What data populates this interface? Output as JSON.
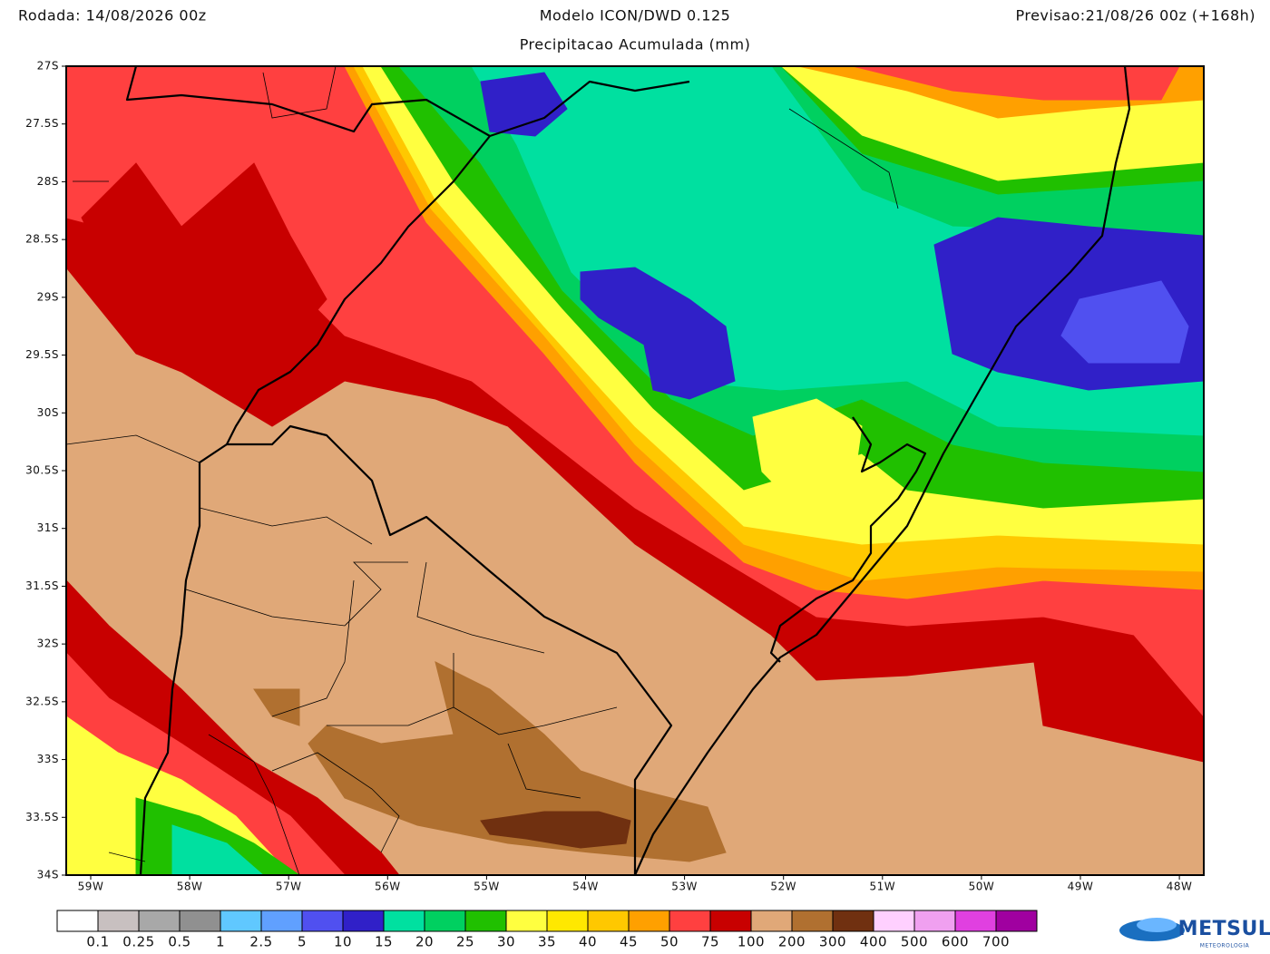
{
  "header": {
    "run": "Rodada: 14/08/2026 00z",
    "model": "Modelo ICON/DWD 0.125",
    "forecast": "Previsao:21/08/26 00z (+168h)",
    "product": "Precipitacao Acumulada (mm)"
  },
  "map": {
    "lat_labels": [
      "27S",
      "27.5S",
      "28S",
      "28.5S",
      "29S",
      "29.5S",
      "30S",
      "30.5S",
      "31S",
      "31.5S",
      "32S",
      "32.5S",
      "33S",
      "33.5S",
      "34S"
    ],
    "lon_labels": [
      "59W",
      "58W",
      "57W",
      "56W",
      "55W",
      "54W",
      "53W",
      "52W",
      "51W",
      "50W",
      "49W",
      "48W"
    ]
  },
  "colorbar": {
    "colors": [
      "#ffffff",
      "#c8c0c0",
      "#a8a8a8",
      "#909090",
      "#60c8ff",
      "#60a0ff",
      "#5050f0",
      "#3020c8",
      "#00e0a0",
      "#00d060",
      "#20c000",
      "#ffff40",
      "#ffe800",
      "#ffc800",
      "#ffa000",
      "#ff4040",
      "#c80000",
      "#e0a878",
      "#b07030",
      "#703010",
      "#ffd0ff",
      "#f0a0f0",
      "#e040e0",
      "#a000a0"
    ],
    "labels": [
      0.1,
      0.25,
      0.5,
      1,
      2.5,
      5,
      10,
      15,
      20,
      25,
      30,
      35,
      40,
      45,
      50,
      75,
      100,
      200,
      300,
      400,
      500,
      600,
      700
    ]
  },
  "logo": {
    "name": "METSUL",
    "subtitle": "METEOROLOGIA"
  }
}
